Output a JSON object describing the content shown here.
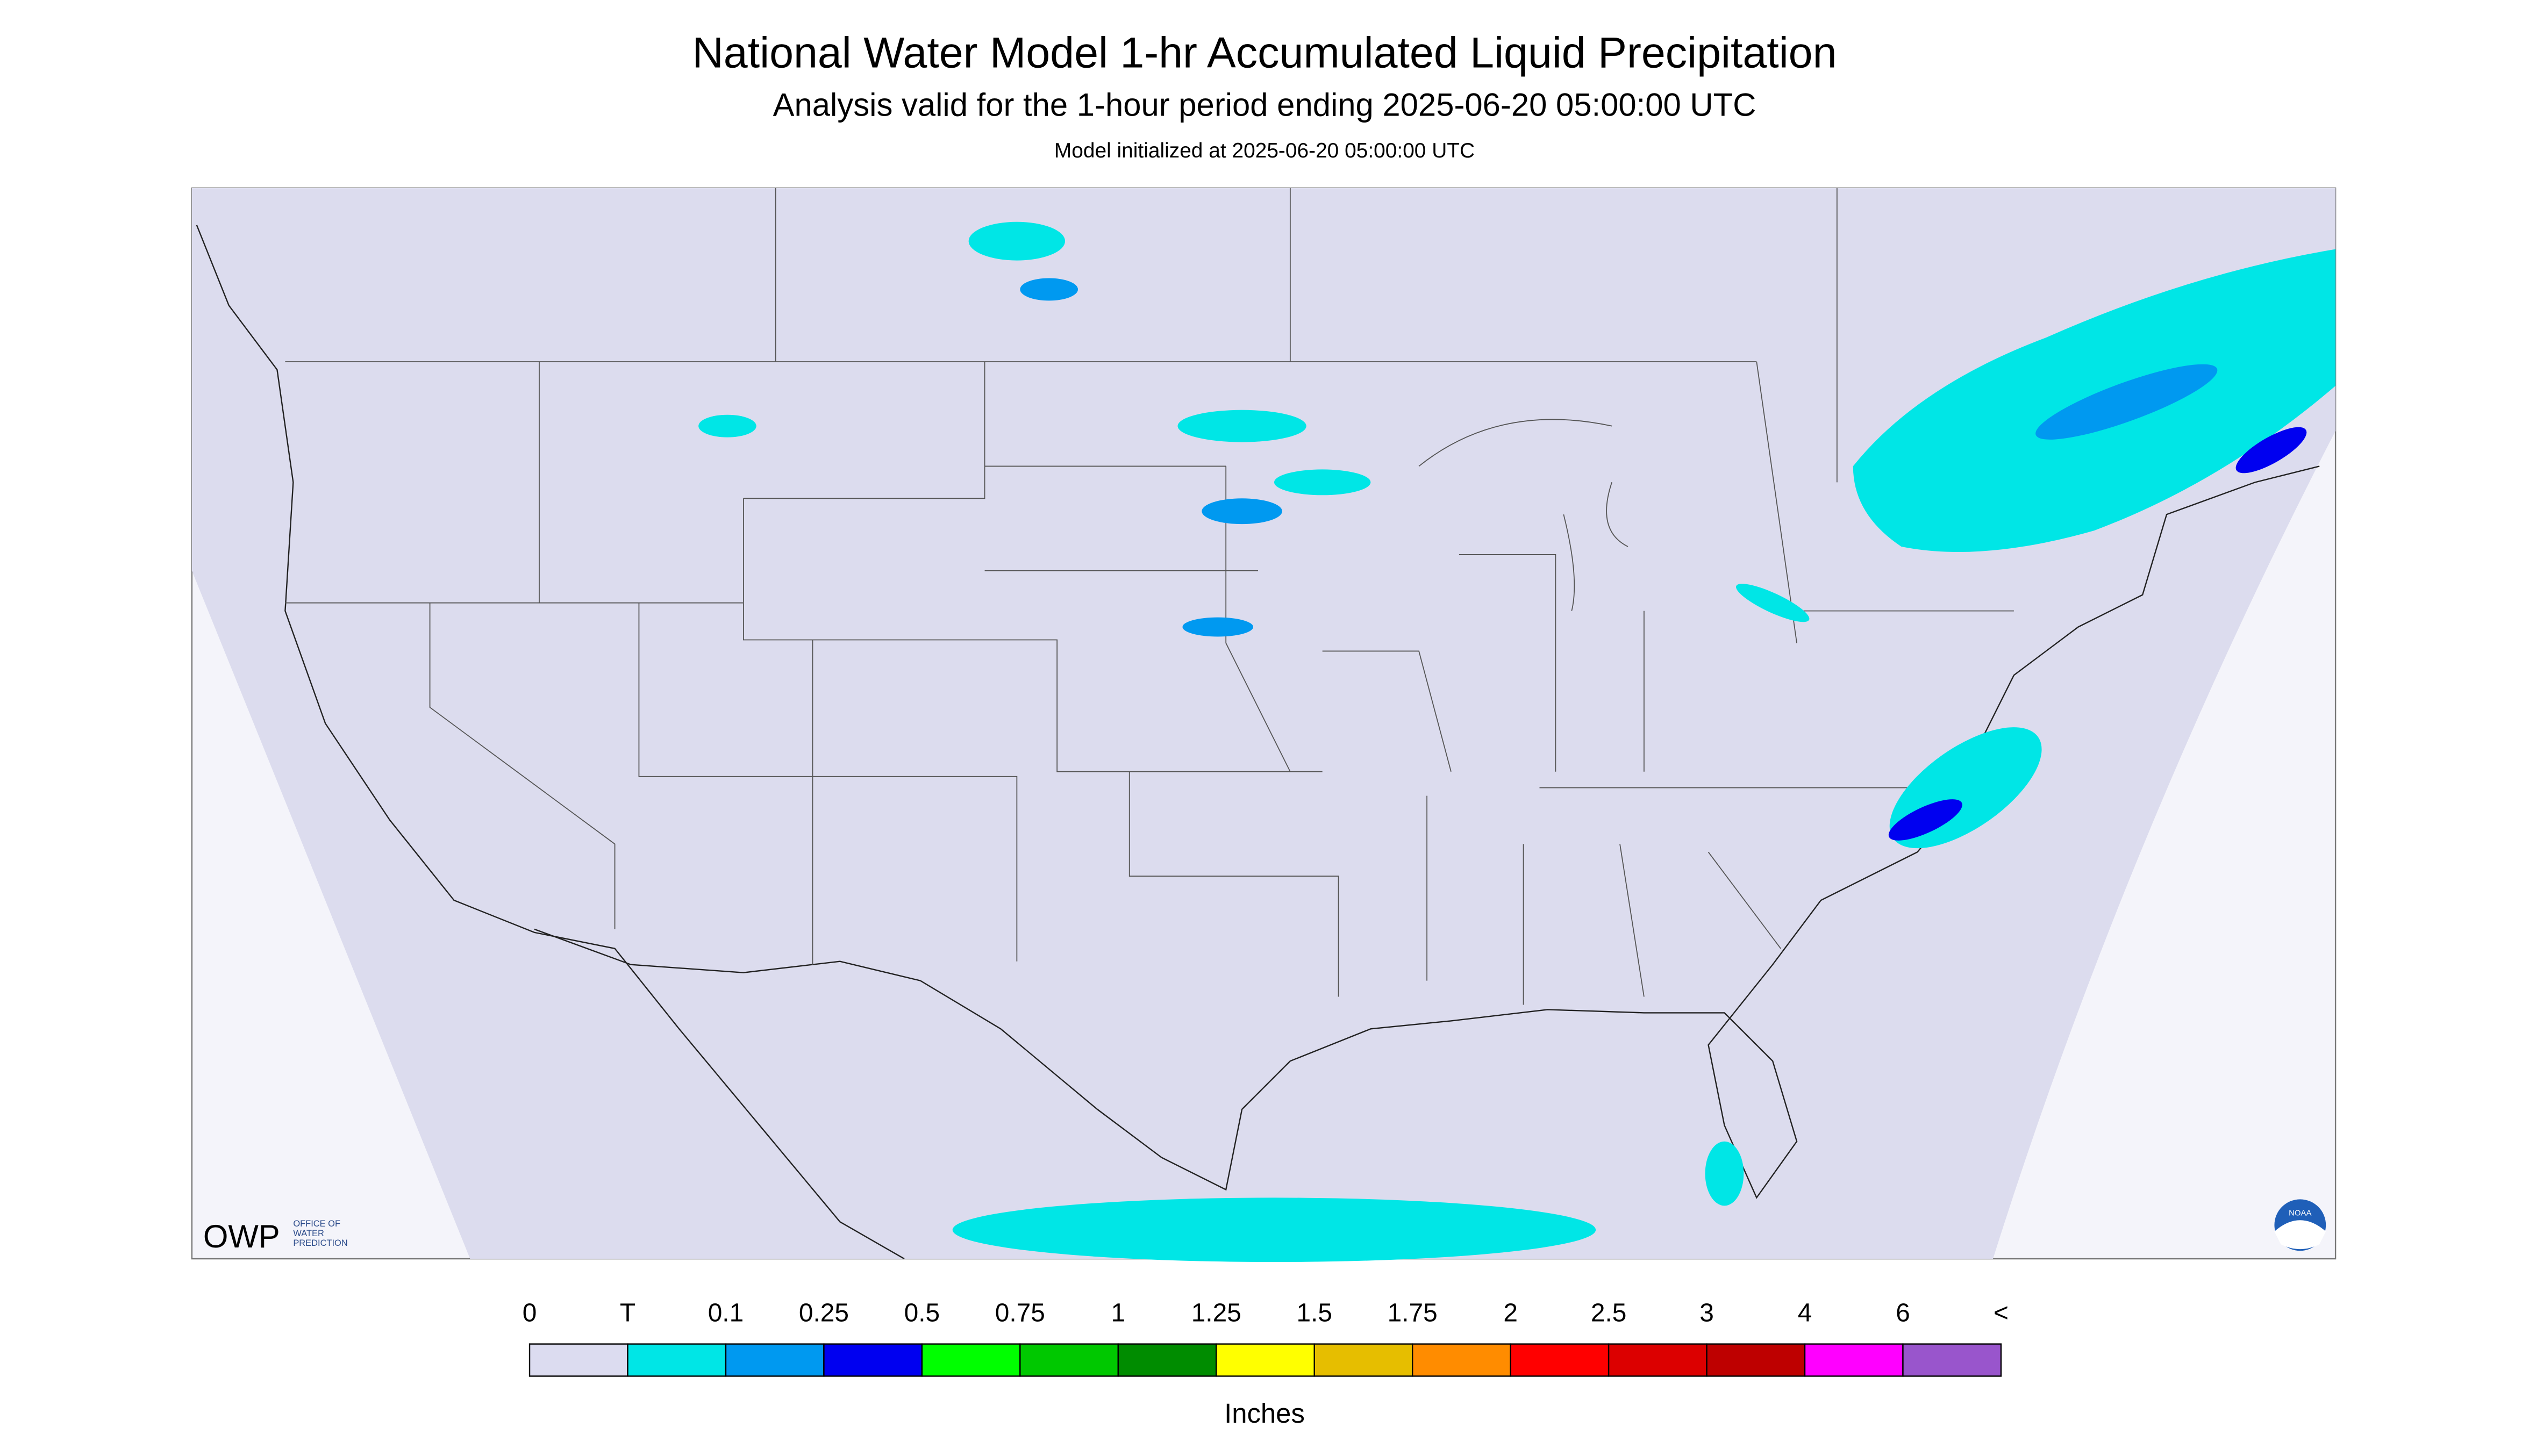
{
  "header": {
    "title": "National Water Model 1-hr Accumulated Liquid Precipitation",
    "subtitle": "Analysis valid for the 1-hour period ending 2025-06-20 05:00:00 UTC",
    "init": "Model initialized at 2025-06-20 05:00:00 UTC"
  },
  "legend": {
    "labels": [
      "0",
      "T",
      "0.1",
      "0.25",
      "0.5",
      "0.75",
      "1",
      "1.25",
      "1.5",
      "1.75",
      "2",
      "2.5",
      "3",
      "4",
      "6",
      "<"
    ],
    "colors": [
      "#dcdcf0",
      "#00e6e6",
      "#0099f0",
      "#0000f0",
      "#00ff00",
      "#00c800",
      "#008c00",
      "#ffff00",
      "#e6be00",
      "#ff8c00",
      "#ff0000",
      "#dc0000",
      "#be0000",
      "#ff00ff",
      "#9955cc"
    ],
    "unit": "Inches"
  },
  "logos": {
    "owp": "OWP",
    "office": [
      "OFFICE OF",
      "WATER",
      "PREDICTION"
    ],
    "noaa": "NOAA"
  }
}
